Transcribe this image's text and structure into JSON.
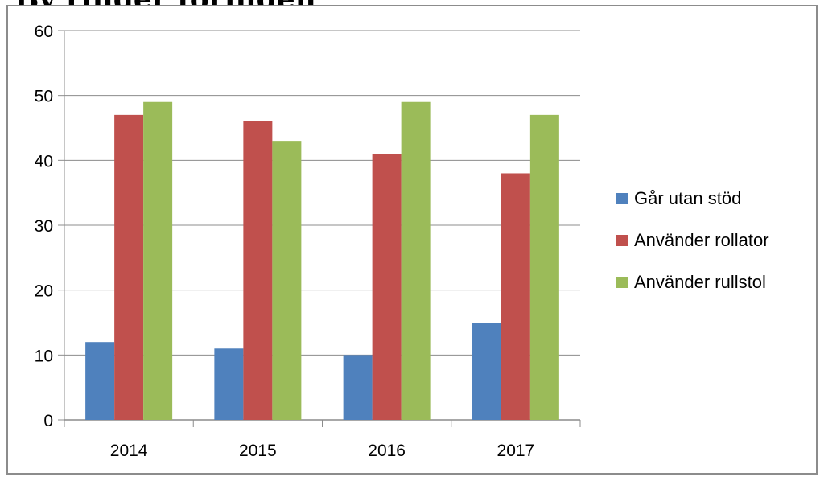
{
  "page": {
    "top_text": "By ringer foringen"
  },
  "chart_data": {
    "type": "bar",
    "categories": [
      "2014",
      "2015",
      "2016",
      "2017"
    ],
    "series": [
      {
        "name": "Går utan stöd",
        "values": [
          12,
          11,
          10,
          15
        ],
        "color": "#4f81bd"
      },
      {
        "name": "Använder rollator",
        "values": [
          47,
          46,
          41,
          38
        ],
        "color": "#c0504d"
      },
      {
        "name": "Använder rullstol",
        "values": [
          49,
          43,
          49,
          47
        ],
        "color": "#9bbb59"
      }
    ],
    "title": "",
    "xlabel": "",
    "ylabel": "",
    "ylim": [
      0,
      60
    ],
    "yticks": [
      0,
      10,
      20,
      30,
      40,
      50,
      60
    ],
    "grid": true,
    "legend": "right"
  }
}
